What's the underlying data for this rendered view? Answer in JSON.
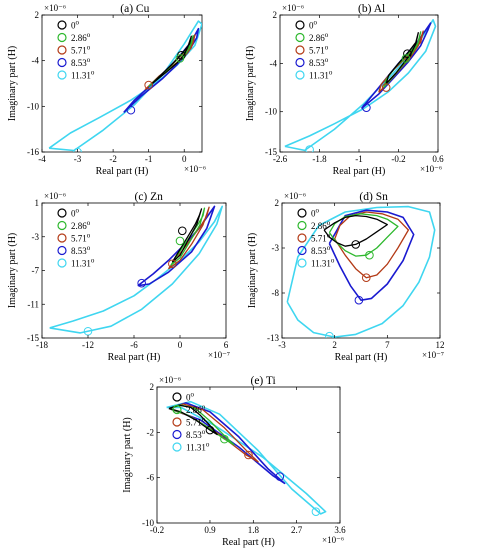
{
  "figure": {
    "panels": [
      {
        "id": "cu",
        "title": "(a) Cu",
        "xlabel": "Real part (H)",
        "ylabel": "Imaginary part (H)",
        "x_exponent": "×10⁻⁶",
        "y_exponent": "×10⁻⁶",
        "xticks": [
          "-4",
          "-3",
          "-2",
          "-1",
          "0"
        ],
        "yticks": [
          "2",
          "-4",
          "-10",
          "-16"
        ],
        "legend": [
          "0°",
          "2.86°",
          "5.71°",
          "8.53°",
          "11.31°"
        ]
      },
      {
        "id": "al",
        "title": "(b) Al",
        "xlabel": "Real part (H)",
        "ylabel": "Imaginary part (H)",
        "x_exponent": "×10⁻⁶",
        "y_exponent": "×10⁻⁶",
        "xticks": [
          "-2.6",
          "-1.8",
          "-1",
          "-0.2",
          "0.6"
        ],
        "yticks": [
          "2",
          "-4",
          "-10",
          "-15"
        ],
        "legend": [
          "0°",
          "2.86°",
          "5.71°",
          "8.53°",
          "11.31°"
        ]
      },
      {
        "id": "zn",
        "title": "(c) Zn",
        "xlabel": "Real part (H)",
        "ylabel": "Imaginary part (H)",
        "x_exponent": "×10⁻⁷",
        "y_exponent": "×10⁻⁶",
        "xticks": [
          "-18",
          "-12",
          "-6",
          "0",
          "6"
        ],
        "yticks": [
          "1",
          "-3",
          "-7",
          "-11",
          "-15"
        ],
        "legend": [
          "0°",
          "2.86°",
          "5.71°",
          "8.53°",
          "11.31°"
        ]
      },
      {
        "id": "sn",
        "title": "(d) Sn",
        "xlabel": "Real part (H)",
        "ylabel": "Imaginary part (H)",
        "x_exponent": "×10⁻⁷",
        "y_exponent": "×10⁻⁶",
        "xticks": [
          "-3",
          "2",
          "7",
          "12"
        ],
        "yticks": [
          "2",
          "-3",
          "-8",
          "-13"
        ],
        "legend": [
          "0°",
          "2.86°",
          "5.71°",
          "8.53°",
          "11.31°"
        ]
      },
      {
        "id": "ti",
        "title": "(e) Ti",
        "xlabel": "Real part (H)",
        "ylabel": "Imaginary part (H)",
        "x_exponent": "×10⁻⁶",
        "y_exponent": "×10⁻⁶",
        "xticks": [
          "-0.2",
          "0.9",
          "1.8",
          "2.7",
          "3.6"
        ],
        "yticks": [
          "2",
          "-2",
          "-6",
          "-10"
        ],
        "legend": [
          "0°",
          "2.86°",
          "5.71°",
          "8.53°",
          "11.31°"
        ]
      }
    ],
    "series_colors": [
      "#000000",
      "#2db82d",
      "#b33a16",
      "#1a1ad0",
      "#3fd6f0"
    ]
  },
  "chart_data": [
    {
      "type": "line",
      "panel": "cu",
      "title": "(a) Cu",
      "xlabel": "Real part (H)",
      "ylabel": "Imaginary part (H)",
      "x_unit_scale": "1e-6",
      "y_unit_scale": "1e-6",
      "xlim": [
        -4,
        0.5
      ],
      "ylim": [
        -16,
        2
      ],
      "series": [
        {
          "name": "0°",
          "marker": [
            -0.08,
            -3.3
          ],
          "x": [
            -0.9,
            -0.5,
            -0.2,
            0.0,
            0.1,
            0.2,
            0.15,
            -0.05,
            -0.35,
            -0.7,
            -0.9
          ],
          "y": [
            -7.0,
            -5.5,
            -4.3,
            -3.2,
            -2.2,
            -0.8,
            -1.8,
            -3.0,
            -4.5,
            -6.1,
            -7.0
          ]
        },
        {
          "name": "2.86°",
          "marker": [
            -0.12,
            -3.7
          ],
          "x": [
            -1.0,
            -0.6,
            -0.25,
            0.0,
            0.15,
            0.25,
            0.2,
            -0.05,
            -0.4,
            -0.8,
            -1.0
          ],
          "y": [
            -7.4,
            -5.8,
            -4.5,
            -3.4,
            -2.3,
            -0.7,
            -1.8,
            -3.1,
            -4.8,
            -6.5,
            -7.4
          ]
        },
        {
          "name": "5.71°",
          "marker": [
            -1.0,
            -7.2
          ],
          "x": [
            -1.1,
            -0.7,
            -0.3,
            0.0,
            0.2,
            0.3,
            0.25,
            -0.05,
            -0.45,
            -0.9,
            -1.1
          ],
          "y": [
            -7.8,
            -6.0,
            -4.6,
            -3.5,
            -2.3,
            -0.6,
            -1.7,
            -3.2,
            -5.0,
            -6.9,
            -7.8
          ]
        },
        {
          "name": "8.53°",
          "marker": [
            -1.5,
            -10.5
          ],
          "x": [
            -1.7,
            -1.2,
            -0.6,
            -0.2,
            0.1,
            0.35,
            0.4,
            0.2,
            -0.2,
            -0.8,
            -1.4,
            -1.7
          ],
          "y": [
            -10.8,
            -8.6,
            -6.3,
            -4.5,
            -2.9,
            -1.0,
            0.2,
            -1.5,
            -3.8,
            -6.6,
            -9.2,
            -10.8
          ]
        },
        {
          "name": "11.31°",
          "marker": [
            -3.0,
            -16.0
          ],
          "x": [
            -3.8,
            -3.2,
            -2.4,
            -1.5,
            -0.8,
            -0.2,
            0.3,
            0.5,
            0.4,
            0.0,
            -0.6,
            -1.4,
            -2.3,
            -3.1,
            -3.8
          ],
          "y": [
            -15.5,
            -13.5,
            -11.5,
            -9.2,
            -7.0,
            -4.6,
            -2.0,
            0.8,
            1.2,
            -1.8,
            -5.8,
            -9.8,
            -13.2,
            -15.8,
            -15.5
          ]
        }
      ]
    },
    {
      "type": "line",
      "panel": "al",
      "title": "(b) Al",
      "xlabel": "Real part (H)",
      "ylabel": "Imaginary part (H)",
      "x_unit_scale": "1e-6",
      "y_unit_scale": "1e-6",
      "xlim": [
        -2.6,
        0.6
      ],
      "ylim": [
        -15,
        2
      ],
      "series": [
        {
          "name": "0°",
          "marker": [
            -0.02,
            -2.8
          ],
          "x": [
            -0.45,
            -0.25,
            -0.1,
            0.05,
            0.15,
            0.2,
            0.15,
            0.0,
            -0.2,
            -0.4,
            -0.45
          ],
          "y": [
            -6.5,
            -5.2,
            -4.0,
            -2.8,
            -1.6,
            -0.2,
            -1.4,
            -2.6,
            -4.0,
            -5.5,
            -6.5
          ]
        },
        {
          "name": "2.86°",
          "marker": [
            -0.05,
            -3.4
          ],
          "x": [
            -0.5,
            -0.3,
            -0.12,
            0.05,
            0.18,
            0.25,
            0.2,
            0.0,
            -0.25,
            -0.45,
            -0.5
          ],
          "y": [
            -7.0,
            -5.6,
            -4.3,
            -3.0,
            -1.7,
            -0.1,
            -1.4,
            -2.8,
            -4.4,
            -6.0,
            -7.0
          ]
        },
        {
          "name": "5.71°",
          "marker": [
            -0.45,
            -7.0
          ],
          "x": [
            -0.6,
            -0.35,
            -0.15,
            0.05,
            0.2,
            0.3,
            0.25,
            0.0,
            -0.3,
            -0.55,
            -0.6
          ],
          "y": [
            -7.6,
            -6.0,
            -4.6,
            -3.2,
            -1.8,
            0.0,
            -1.4,
            -3.0,
            -4.8,
            -6.6,
            -7.6
          ]
        },
        {
          "name": "8.53°",
          "marker": [
            -0.85,
            -9.5
          ],
          "x": [
            -0.95,
            -0.6,
            -0.3,
            0.0,
            0.25,
            0.4,
            0.45,
            0.2,
            -0.2,
            -0.6,
            -0.95
          ],
          "y": [
            -9.6,
            -7.8,
            -5.8,
            -3.8,
            -1.8,
            0.2,
            1.0,
            -1.2,
            -4.0,
            -7.0,
            -9.6
          ]
        },
        {
          "name": "11.31°",
          "marker": [
            -2.0,
            -14.7
          ],
          "x": [
            -2.5,
            -2.0,
            -1.5,
            -0.9,
            -0.4,
            0.0,
            0.35,
            0.55,
            0.5,
            0.2,
            -0.3,
            -0.9,
            -1.5,
            -2.1,
            -2.5
          ],
          "y": [
            -14.3,
            -13.0,
            -11.5,
            -9.6,
            -7.5,
            -5.2,
            -2.5,
            0.6,
            1.4,
            -1.5,
            -5.2,
            -9.0,
            -12.2,
            -14.8,
            -14.3
          ]
        }
      ]
    },
    {
      "type": "line",
      "panel": "zn",
      "title": "(c) Zn",
      "xlabel": "Real part (H)",
      "ylabel": "Imaginary part (H)",
      "x_unit_scale": "1e-7",
      "y_unit_scale": "1e-6",
      "xlim": [
        -18,
        6
      ],
      "ylim": [
        -15,
        1
      ],
      "series": [
        {
          "name": "0°",
          "marker": [
            0.3,
            -2.3
          ],
          "x": [
            -1.0,
            0.0,
            1.0,
            2.0,
            2.5,
            2.8,
            2.2,
            1.0,
            0.0,
            -1.0
          ],
          "y": [
            -6.0,
            -4.5,
            -3.0,
            -1.5,
            -0.5,
            0.3,
            -1.5,
            -3.5,
            -5.2,
            -6.0
          ]
        },
        {
          "name": "2.86°",
          "marker": [
            0.0,
            -3.5
          ],
          "x": [
            -1.2,
            0.0,
            1.2,
            2.3,
            3.0,
            3.2,
            2.6,
            1.2,
            0.0,
            -1.2
          ],
          "y": [
            -6.4,
            -4.7,
            -3.1,
            -1.6,
            -0.5,
            0.4,
            -1.6,
            -3.7,
            -5.5,
            -6.4
          ]
        },
        {
          "name": "5.71°",
          "marker": [
            -1.0,
            -6.2
          ],
          "x": [
            -1.5,
            0.0,
            1.5,
            2.8,
            3.5,
            3.8,
            3.0,
            1.5,
            0.0,
            -1.5
          ],
          "y": [
            -6.8,
            -5.0,
            -3.2,
            -1.6,
            -0.5,
            0.5,
            -1.6,
            -3.9,
            -5.8,
            -6.8
          ]
        },
        {
          "name": "8.53°",
          "marker": [
            -5.0,
            -8.5
          ],
          "x": [
            -5.5,
            -3.5,
            -1.5,
            0.5,
            2.5,
            3.8,
            4.5,
            3.5,
            1.5,
            -1.5,
            -4.0,
            -5.5
          ],
          "y": [
            -8.8,
            -7.4,
            -5.8,
            -4.0,
            -2.0,
            -0.3,
            0.6,
            -2.0,
            -4.8,
            -7.2,
            -8.6,
            -8.8
          ]
        },
        {
          "name": "11.31°",
          "marker": [
            -12.0,
            -14.2
          ],
          "x": [
            -17.0,
            -14.0,
            -10.0,
            -6.0,
            -3.0,
            0.0,
            2.5,
            4.5,
            5.5,
            4.8,
            2.5,
            -1.0,
            -5.0,
            -9.0,
            -13.0,
            -17.0
          ],
          "y": [
            -13.8,
            -13.0,
            -11.8,
            -10.0,
            -8.0,
            -5.8,
            -3.6,
            -1.2,
            0.6,
            -1.5,
            -5.0,
            -8.6,
            -11.6,
            -13.6,
            -14.4,
            -13.8
          ]
        }
      ]
    },
    {
      "type": "line",
      "panel": "sn",
      "title": "(d) Sn",
      "xlabel": "Real part (H)",
      "ylabel": "Imaginary part (H)",
      "x_unit_scale": "1e-7",
      "y_unit_scale": "1e-6",
      "xlim": [
        -3,
        12
      ],
      "ylim": [
        -13,
        2
      ],
      "series": [
        {
          "name": "0°",
          "marker": [
            4.0,
            -2.6
          ],
          "x": [
            1.0,
            1.5,
            2.2,
            3.0,
            4.0,
            5.0,
            6.0,
            7.0,
            6.0,
            5.0,
            4.0,
            3.0,
            2.0,
            1.0
          ],
          "y": [
            -1.0,
            -1.8,
            -2.4,
            -2.8,
            -2.6,
            -2.0,
            -1.2,
            -0.4,
            0.2,
            0.5,
            0.6,
            0.4,
            -0.2,
            -1.0
          ]
        },
        {
          "name": "2.86°",
          "marker": [
            5.3,
            -3.8
          ],
          "x": [
            1.5,
            2.2,
            3.0,
            4.0,
            5.0,
            6.0,
            7.0,
            8.0,
            7.0,
            6.0,
            4.5,
            3.0,
            2.0,
            1.5
          ],
          "y": [
            -1.3,
            -2.4,
            -3.3,
            -3.9,
            -3.8,
            -3.0,
            -1.8,
            -0.6,
            0.2,
            0.6,
            0.8,
            0.5,
            -0.3,
            -1.3
          ]
        },
        {
          "name": "5.71°",
          "marker": [
            5.0,
            -6.3
          ],
          "x": [
            2.0,
            3.0,
            4.0,
            5.0,
            6.0,
            7.0,
            8.0,
            9.0,
            8.0,
            6.5,
            5.0,
            3.5,
            2.5,
            2.0
          ],
          "y": [
            -2.0,
            -3.8,
            -5.3,
            -6.3,
            -6.0,
            -4.8,
            -3.0,
            -1.0,
            0.2,
            0.8,
            1.0,
            0.6,
            -0.5,
            -2.0
          ]
        },
        {
          "name": "8.53°",
          "marker": [
            4.3,
            -8.8
          ],
          "x": [
            1.5,
            2.5,
            3.5,
            4.5,
            5.5,
            7.0,
            8.5,
            9.5,
            8.5,
            7.0,
            5.0,
            3.0,
            1.5
          ],
          "y": [
            -2.5,
            -5.0,
            -7.2,
            -8.8,
            -8.6,
            -7.0,
            -4.4,
            -1.5,
            0.4,
            1.0,
            1.2,
            0.6,
            -2.5
          ]
        },
        {
          "name": "11.31°",
          "marker": [
            1.5,
            -12.8
          ],
          "x": [
            -2.5,
            -1.5,
            0.0,
            2.0,
            4.0,
            6.5,
            8.5,
            10.0,
            11.0,
            11.5,
            11.0,
            9.0,
            6.0,
            3.0,
            0.5,
            -1.5,
            -2.5
          ],
          "y": [
            -9.0,
            -11.0,
            -12.4,
            -12.9,
            -12.6,
            -11.4,
            -9.4,
            -6.8,
            -4.0,
            -1.0,
            1.0,
            1.6,
            1.5,
            1.0,
            -0.5,
            -4.0,
            -9.0
          ]
        }
      ]
    },
    {
      "type": "line",
      "panel": "ti",
      "title": "(e) Ti",
      "xlabel": "Real part (H)",
      "ylabel": "Imaginary part (H)",
      "x_unit_scale": "1e-6",
      "y_unit_scale": "1e-6",
      "xlim": [
        -0.2,
        3.6
      ],
      "ylim": [
        -10,
        2
      ],
      "series": [
        {
          "name": "0°",
          "marker": [
            0.9,
            -1.8
          ],
          "x": [
            0.05,
            0.25,
            0.5,
            0.7,
            0.9,
            1.05,
            0.9,
            0.6,
            0.3,
            0.05
          ],
          "y": [
            0.1,
            0.4,
            0.2,
            -0.5,
            -1.4,
            -2.2,
            -1.8,
            -0.9,
            -0.2,
            0.1
          ]
        },
        {
          "name": "2.86°",
          "marker": [
            1.2,
            -2.6
          ],
          "x": [
            0.05,
            0.3,
            0.6,
            0.9,
            1.2,
            1.4,
            1.2,
            0.8,
            0.4,
            0.05
          ],
          "y": [
            0.1,
            0.4,
            0.1,
            -1.0,
            -2.3,
            -3.1,
            -2.6,
            -1.4,
            -0.4,
            0.1
          ]
        },
        {
          "name": "5.71°",
          "marker": [
            1.7,
            -4.0
          ],
          "x": [
            0.05,
            0.35,
            0.75,
            1.2,
            1.7,
            1.9,
            1.65,
            1.1,
            0.5,
            0.05
          ],
          "y": [
            0.1,
            0.5,
            0.0,
            -1.6,
            -3.8,
            -4.6,
            -4.0,
            -2.2,
            -0.6,
            0.1
          ]
        },
        {
          "name": "8.53°",
          "marker": [
            2.35,
            -5.9
          ],
          "x": [
            0.05,
            0.4,
            0.9,
            1.5,
            2.1,
            2.45,
            2.2,
            1.5,
            0.7,
            0.05
          ],
          "y": [
            0.1,
            0.6,
            -0.2,
            -2.4,
            -5.2,
            -6.5,
            -5.8,
            -3.3,
            -0.9,
            0.1
          ]
        },
        {
          "name": "11.31°",
          "marker": [
            3.1,
            -9.0
          ],
          "x": [
            0.0,
            0.5,
            1.1,
            1.9,
            2.6,
            3.2,
            3.3,
            2.9,
            2.0,
            1.0,
            0.3,
            0.0
          ],
          "y": [
            0.2,
            0.7,
            -0.4,
            -3.6,
            -7.0,
            -9.2,
            -9.0,
            -7.4,
            -4.2,
            -1.4,
            0.2,
            0.2
          ]
        }
      ]
    }
  ]
}
